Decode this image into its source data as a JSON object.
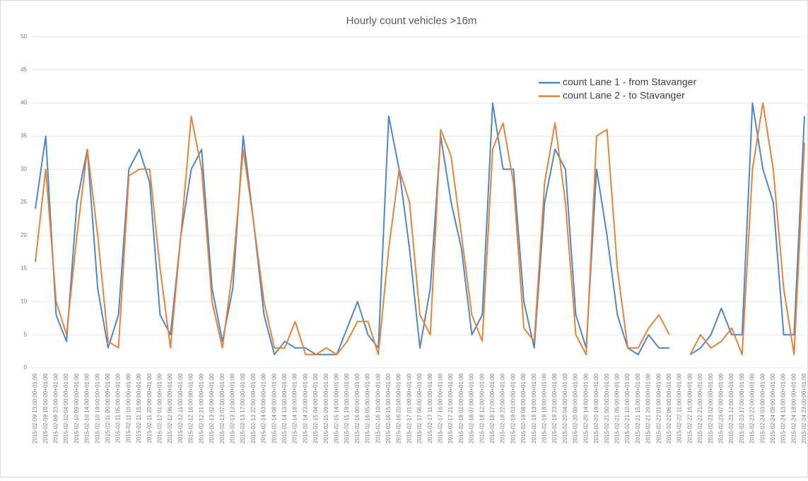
{
  "chart_data": {
    "type": "line",
    "title": "Hourly count vehicles >16m",
    "categories": [
      "2015-02-09 13:00:00+01:00",
      "2015-02-09 18:00:00+01:00",
      "2015-02-09 23:00:00+01:00",
      "2015-02-10 04:00:00+01:00",
      "2015-02-10 09:00:00+01:00",
      "2015-02-10 14:00:00+01:00",
      "2015-02-10 19:00:00+01:00",
      "2015-02-11 00:00:00+01:00",
      "2015-02-11 05:00:00+01:00",
      "2015-02-11 10:00:00+01:00",
      "2015-02-11 15:00:00+01:00",
      "2015-02-11 20:00:00+01:00",
      "2015-02-12 01:00:00+01:00",
      "2015-02-12 06:00:00+01:00",
      "2015-02-12 11:00:00+01:00",
      "2015-02-12 16:00:00+01:00",
      "2015-02-12 21:00:00+01:00",
      "2015-02-13 02:00:00+01:00",
      "2015-02-13 07:00:00+01:00",
      "2015-02-13 12:00:00+01:00",
      "2015-02-13 17:00:00+01:00",
      "2015-02-13 22:00:00+01:00",
      "2015-02-14 03:00:00+01:00",
      "2015-02-14 08:00:00+01:00",
      "2015-02-14 13:00:00+01:00",
      "2015-02-14 18:00:00+01:00",
      "2015-02-14 23:00:00+01:00",
      "2015-02-15 04:00:00+01:00",
      "2015-02-15 09:00:00+01:00",
      "2015-02-15 14:00:00+01:00",
      "2015-02-15 19:00:00+01:00",
      "2015-02-16 00:00:00+01:00",
      "2015-02-16 05:00:00+01:00",
      "2015-02-16 10:00:00+01:00",
      "2015-02-16 15:00:00+01:00",
      "2015-02-16 20:00:00+01:00",
      "2015-02-17 01:00:00+01:00",
      "2015-02-17 06:00:00+01:00",
      "2015-02-17 11:00:00+01:00",
      "2015-02-17 16:00:00+01:00",
      "2015-02-17 21:00:00+01:00",
      "2015-02-18 02:00:00+01:00",
      "2015-02-18 07:00:00+01:00",
      "2015-02-18 12:00:00+01:00",
      "2015-02-18 17:00:00+01:00",
      "2015-02-18 22:00:00+01:00",
      "2015-02-19 03:00:00+01:00",
      "2015-02-19 08:00:00+01:00",
      "2015-02-19 13:00:00+01:00",
      "2015-02-19 18:00:00+01:00",
      "2015-02-19 23:00:00+01:00",
      "2015-02-20 04:00:00+01:00",
      "2015-02-20 09:00:00+01:00",
      "2015-02-20 14:00:00+01:00",
      "2015-02-20 19:00:00+01:00",
      "2015-02-21 00:00:00+01:00",
      "2015-02-21 05:00:00+01:00",
      "2015-02-21 10:00:00+01:00",
      "2015-02-21 15:00:00+01:00",
      "2015-02-21 20:00:00+01:00",
      "2015-02-22 01:00:00+01:00",
      "2015-02-22 06:00:00+01:00",
      "2015-02-22 11:00:00+01:00",
      "2015-02-22 16:00:00+01:00",
      "2015-02-22 21:00:00+01:00",
      "2015-02-23 02:00:00+01:00",
      "2015-02-23 07:00:00+01:00",
      "2015-02-23 12:00:00+01:00",
      "2015-02-23 17:00:00+01:00",
      "2015-02-23 22:00:00+01:00",
      "2015-02-24 03:00:00+01:00",
      "2015-02-24 08:00:00+01:00",
      "2015-02-24 13:00:00+01:00",
      "2015-02-24 18:00:00+01:00",
      "2015-02-24 23:00:00+01:00"
    ],
    "series": [
      {
        "name": "count Lane 1 - from Stavanger",
        "color": "#4f86c6",
        "values": [
          24,
          35,
          8,
          4,
          25,
          33,
          12,
          3,
          8,
          30,
          33,
          28,
          8,
          5,
          20,
          30,
          33,
          12,
          4,
          12,
          35,
          22,
          8,
          2,
          4,
          3,
          3,
          2,
          2,
          2,
          6,
          10,
          5,
          3,
          38,
          30,
          18,
          3,
          12,
          35,
          25,
          18,
          5,
          8,
          40,
          30,
          30,
          10,
          3,
          25,
          33,
          30,
          8,
          3,
          30,
          20,
          8,
          3,
          2,
          5,
          3,
          3,
          null,
          2,
          3,
          5,
          9,
          5,
          5,
          40,
          30,
          25,
          5,
          5,
          38
        ]
      },
      {
        "name": "count Lane 2 - to Stavanger",
        "color": "#e5823a",
        "values": [
          16,
          30,
          10,
          5,
          20,
          33,
          20,
          4,
          3,
          29,
          30,
          30,
          15,
          3,
          20,
          38,
          30,
          10,
          3,
          15,
          33,
          22,
          10,
          3,
          3,
          7,
          2,
          2,
          3,
          2,
          4,
          7,
          7,
          2,
          18,
          30,
          25,
          8,
          5,
          36,
          32,
          20,
          8,
          4,
          33,
          37,
          28,
          6,
          4,
          28,
          37,
          25,
          5,
          2,
          35,
          36,
          15,
          3,
          3,
          6,
          8,
          5,
          null,
          2,
          5,
          3,
          4,
          6,
          2,
          30,
          40,
          30,
          12,
          2,
          34
        ]
      }
    ],
    "ylim": [
      0,
      50
    ],
    "yticks": [
      0,
      5,
      10,
      15,
      20,
      25,
      30,
      35,
      40,
      45,
      50
    ],
    "grid": true,
    "legend": "upper right"
  }
}
